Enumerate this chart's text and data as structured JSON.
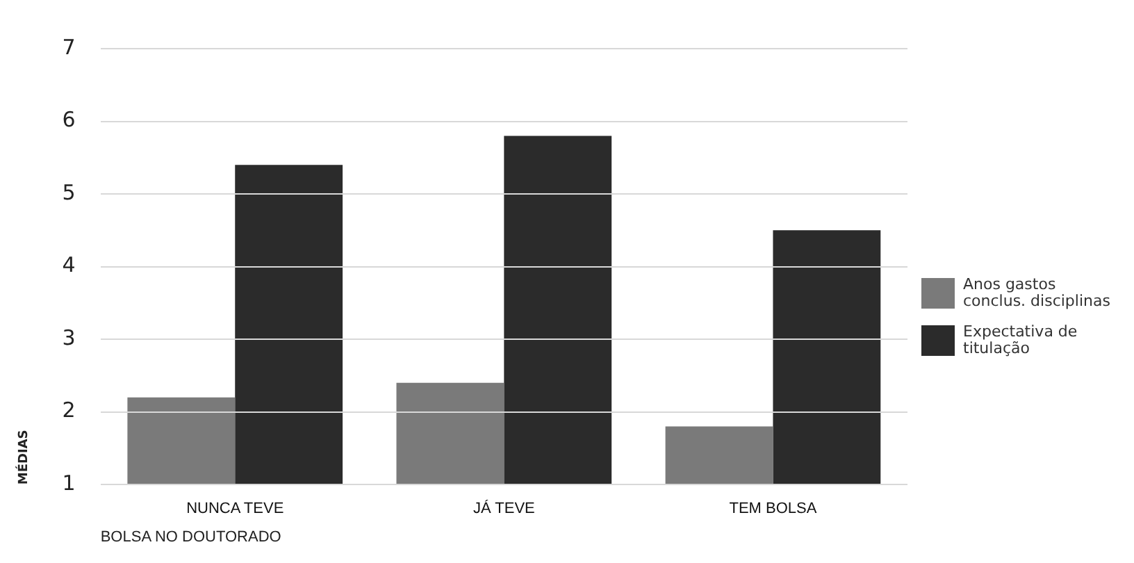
{
  "chart_data": {
    "type": "bar",
    "categories": [
      "NUNCA TEVE",
      "JÁ TEVE",
      "TEM BOLSA"
    ],
    "series": [
      {
        "name": "Anos gastos conclus. disciplinas",
        "color": "#7a7a7a",
        "values": [
          2.2,
          2.4,
          1.8
        ]
      },
      {
        "name": "Expectativa de titulação",
        "color": "#2b2b2b",
        "values": [
          5.4,
          5.8,
          4.5
        ]
      }
    ],
    "xlabel": "BOLSA NO DOUTORADO",
    "ylabel": "MÉDIAS",
    "ylim": [
      1,
      7
    ],
    "yticks": [
      1,
      2,
      3,
      4,
      5,
      6,
      7
    ],
    "grid": "y",
    "legend": "right"
  }
}
